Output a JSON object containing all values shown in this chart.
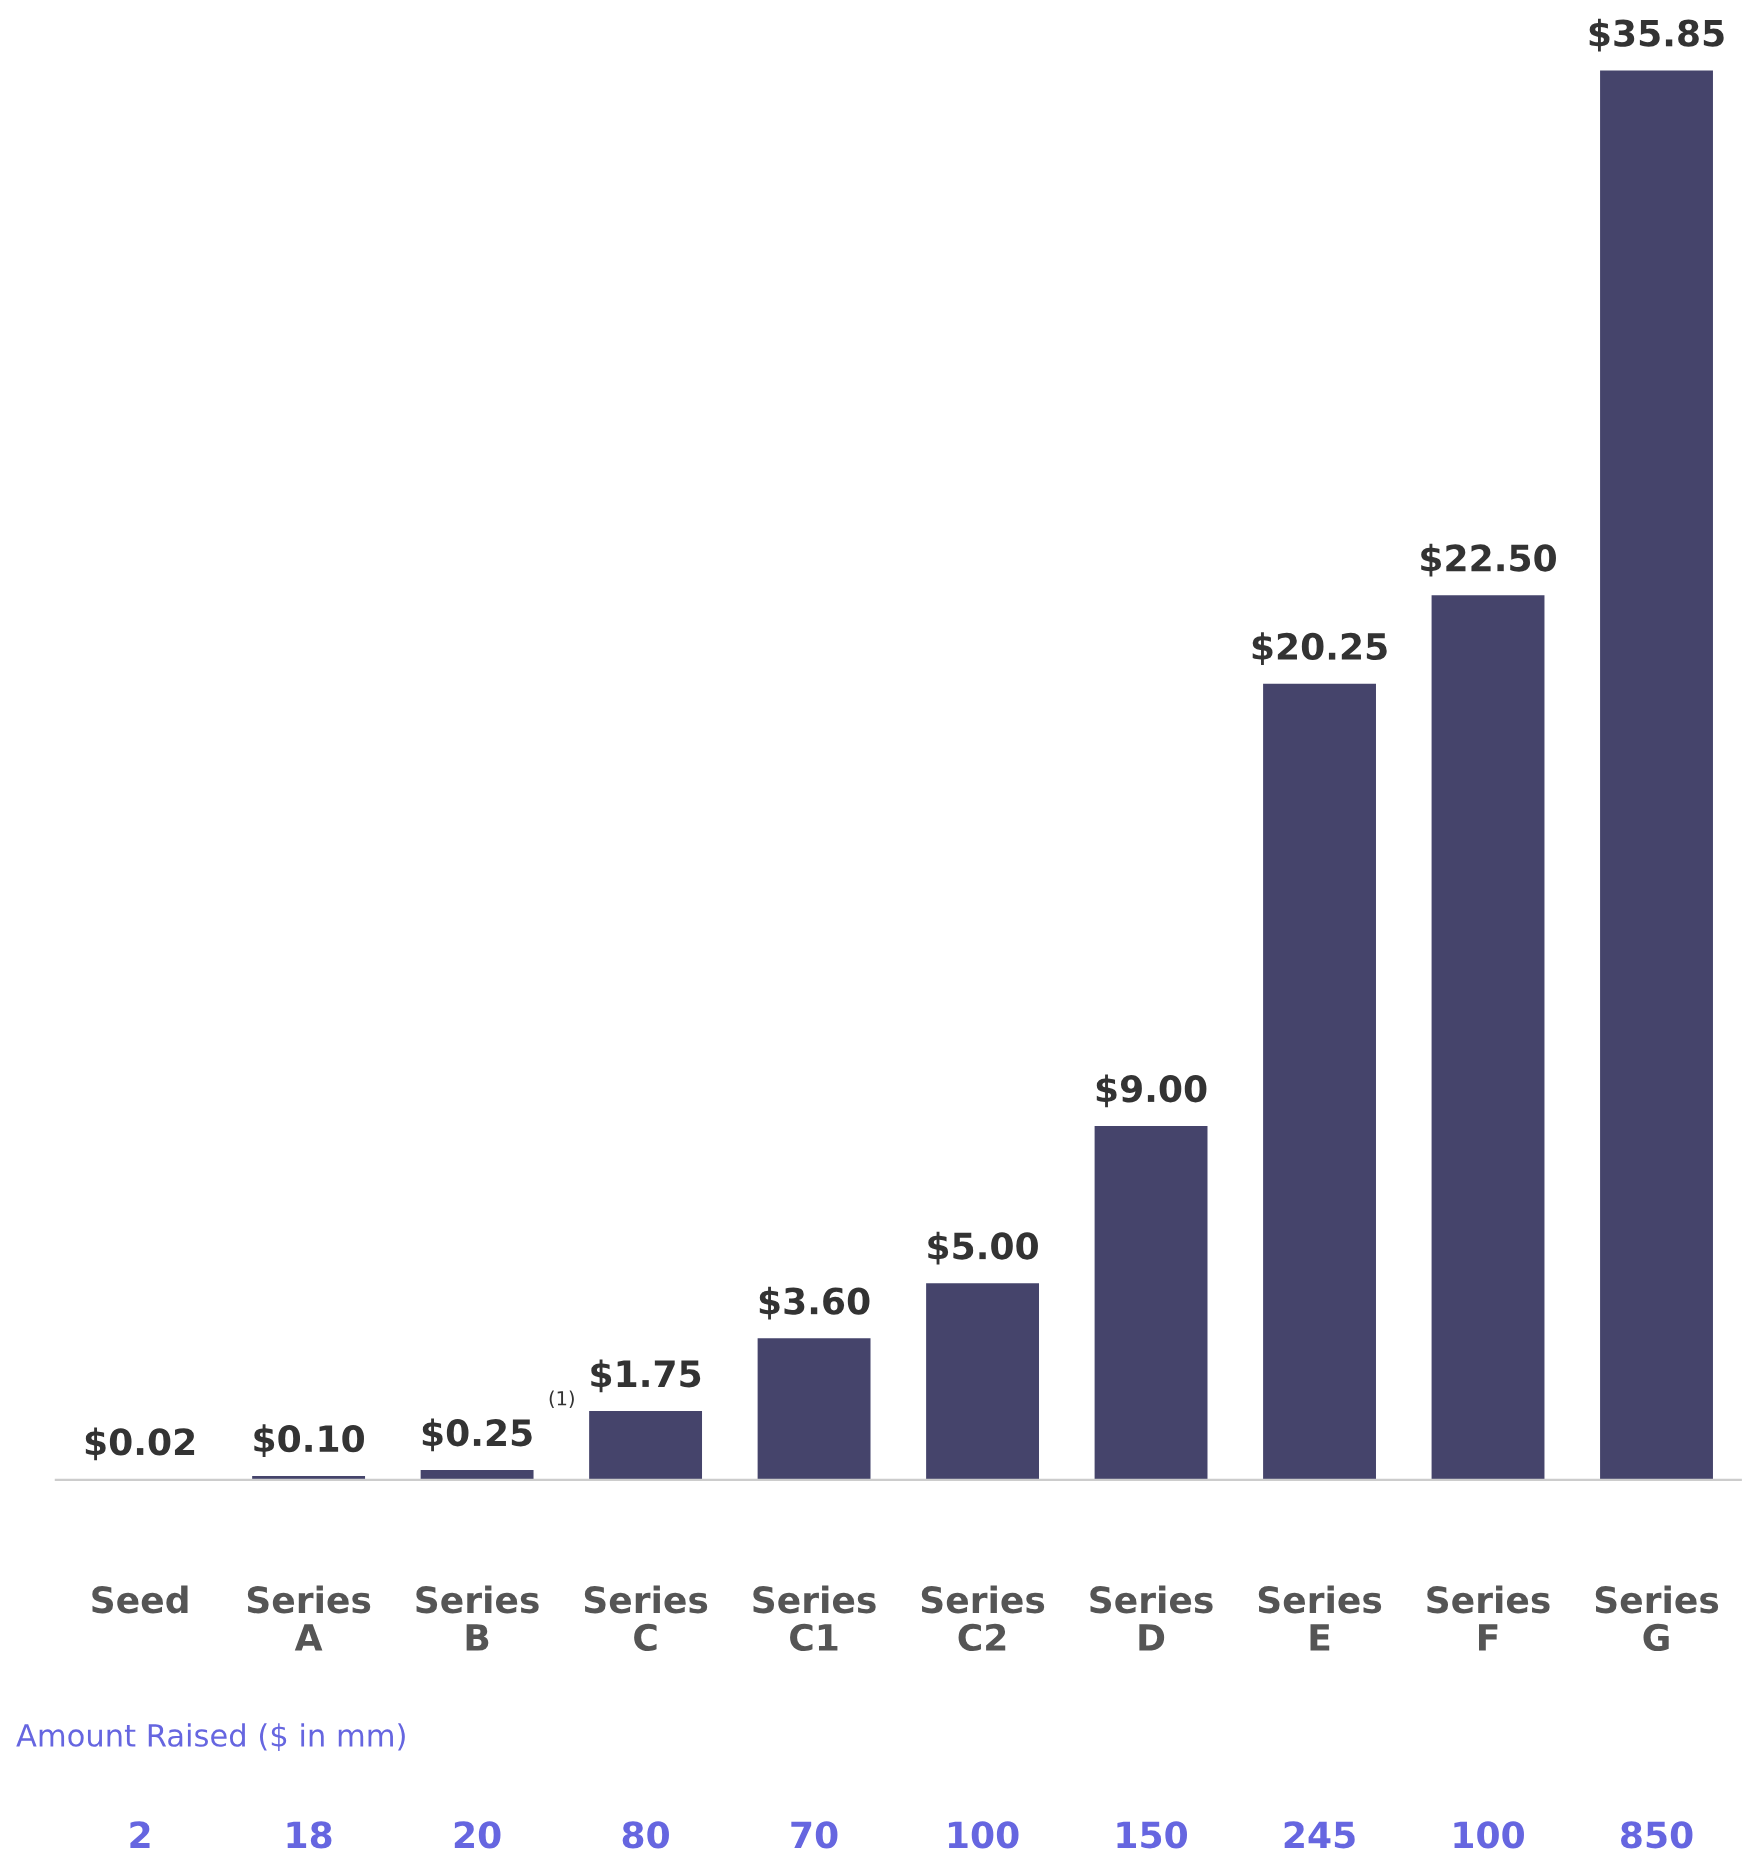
{
  "chart_data": {
    "type": "bar",
    "categories": [
      "Seed",
      "Series\nA",
      "Series\nB",
      "Series\nC",
      "Series\nC1",
      "Series\nC2",
      "Series\nD",
      "Series\nE",
      "Series\nF",
      "Series\nG"
    ],
    "values": [
      0.02,
      0.1,
      0.25,
      1.75,
      3.6,
      5.0,
      9.0,
      20.25,
      22.5,
      35.85
    ],
    "value_labels": [
      "$0.02",
      "$0.10",
      "$0.25",
      "$1.75",
      "$3.60",
      "$5.00",
      "$9.00",
      "$20.25",
      "$22.50",
      "$35.85"
    ],
    "color": "#45446b",
    "tick_labels": "x",
    "grid": false,
    "legend": false,
    "annotations": [
      "(1)",
      "Amount Raised ($ in mm)",
      "2",
      "18",
      "20",
      "80",
      "70",
      "100",
      "150",
      "245",
      "100",
      "850"
    ]
  }
}
